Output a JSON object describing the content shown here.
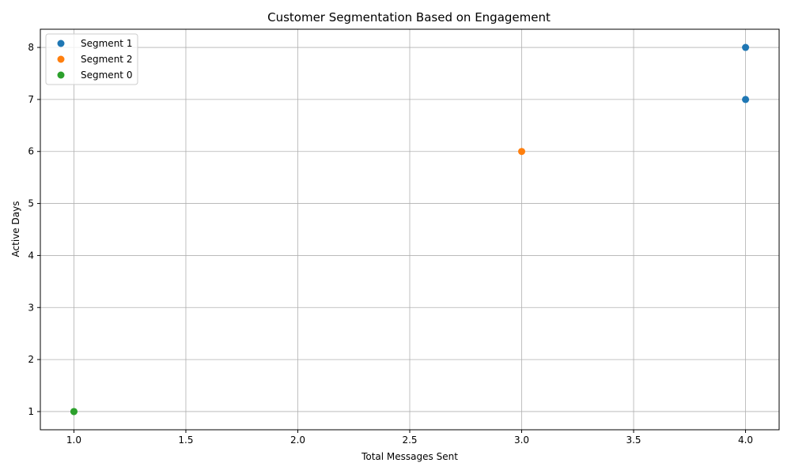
{
  "chart_data": {
    "type": "scatter",
    "title": "Customer Segmentation Based on Engagement",
    "xlabel": "Total Messages Sent",
    "ylabel": "Active Days",
    "xlim": [
      0.85,
      4.15
    ],
    "ylim": [
      0.65,
      8.35
    ],
    "xticks": [
      1.0,
      1.5,
      2.0,
      2.5,
      3.0,
      3.5,
      4.0
    ],
    "xtick_labels": [
      "1.0",
      "1.5",
      "2.0",
      "2.5",
      "3.0",
      "3.5",
      "4.0"
    ],
    "yticks": [
      1,
      2,
      3,
      4,
      5,
      6,
      7,
      8
    ],
    "ytick_labels": [
      "1",
      "2",
      "3",
      "4",
      "5",
      "6",
      "7",
      "8"
    ],
    "grid": true,
    "legend_position": "top-left",
    "series": [
      {
        "name": "Segment 1",
        "color": "#1f77b4",
        "points": [
          {
            "x": 4,
            "y": 8
          },
          {
            "x": 4,
            "y": 7
          }
        ]
      },
      {
        "name": "Segment 2",
        "color": "#ff7f0e",
        "points": [
          {
            "x": 3,
            "y": 6
          }
        ]
      },
      {
        "name": "Segment 0",
        "color": "#2ca02c",
        "points": [
          {
            "x": 1,
            "y": 1
          },
          {
            "x": 1,
            "y": 1
          }
        ]
      }
    ]
  }
}
